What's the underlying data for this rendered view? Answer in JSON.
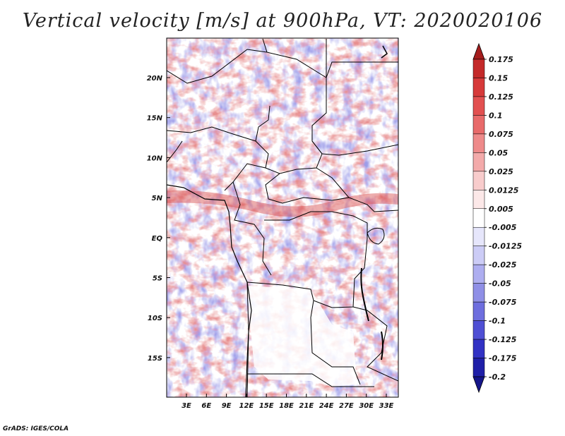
{
  "title": "Vertical velocity [m/s] at 900hPa, VT: 2020020106",
  "credit": "GrADS: IGES/COLA",
  "map": {
    "lat_range": [
      -20,
      25
    ],
    "lon_range": [
      0,
      35
    ],
    "y_tick_labels": [
      "20N",
      "15N",
      "10N",
      "5N",
      "EQ",
      "5S",
      "10S",
      "15S"
    ],
    "x_tick_labels": [
      "3E",
      "6E",
      "9E",
      "12E",
      "15E",
      "18E",
      "21E",
      "24E",
      "27E",
      "30E",
      "33E"
    ]
  },
  "colorbar": {
    "labels": [
      "0.175",
      "0.15",
      "0.125",
      "0.1",
      "0.075",
      "0.05",
      "0.025",
      "0.0125",
      "0.005",
      "-0.005",
      "-0.0125",
      "-0.025",
      "-0.05",
      "-0.075",
      "-0.1",
      "-0.125",
      "-0.175",
      "-0.2"
    ],
    "colors": [
      "#a51d1d",
      "#c42a2a",
      "#d63a3a",
      "#e25050",
      "#e86a6a",
      "#ee8a8a",
      "#f3aaaa",
      "#f8cccc",
      "#fce8e8",
      "#ffffff",
      "#e6e6fb",
      "#ccccf6",
      "#aeaef0",
      "#8f8fe6",
      "#6e6ede",
      "#4f4fd4",
      "#3232c4",
      "#1f1fa8",
      "#15158a"
    ]
  }
}
